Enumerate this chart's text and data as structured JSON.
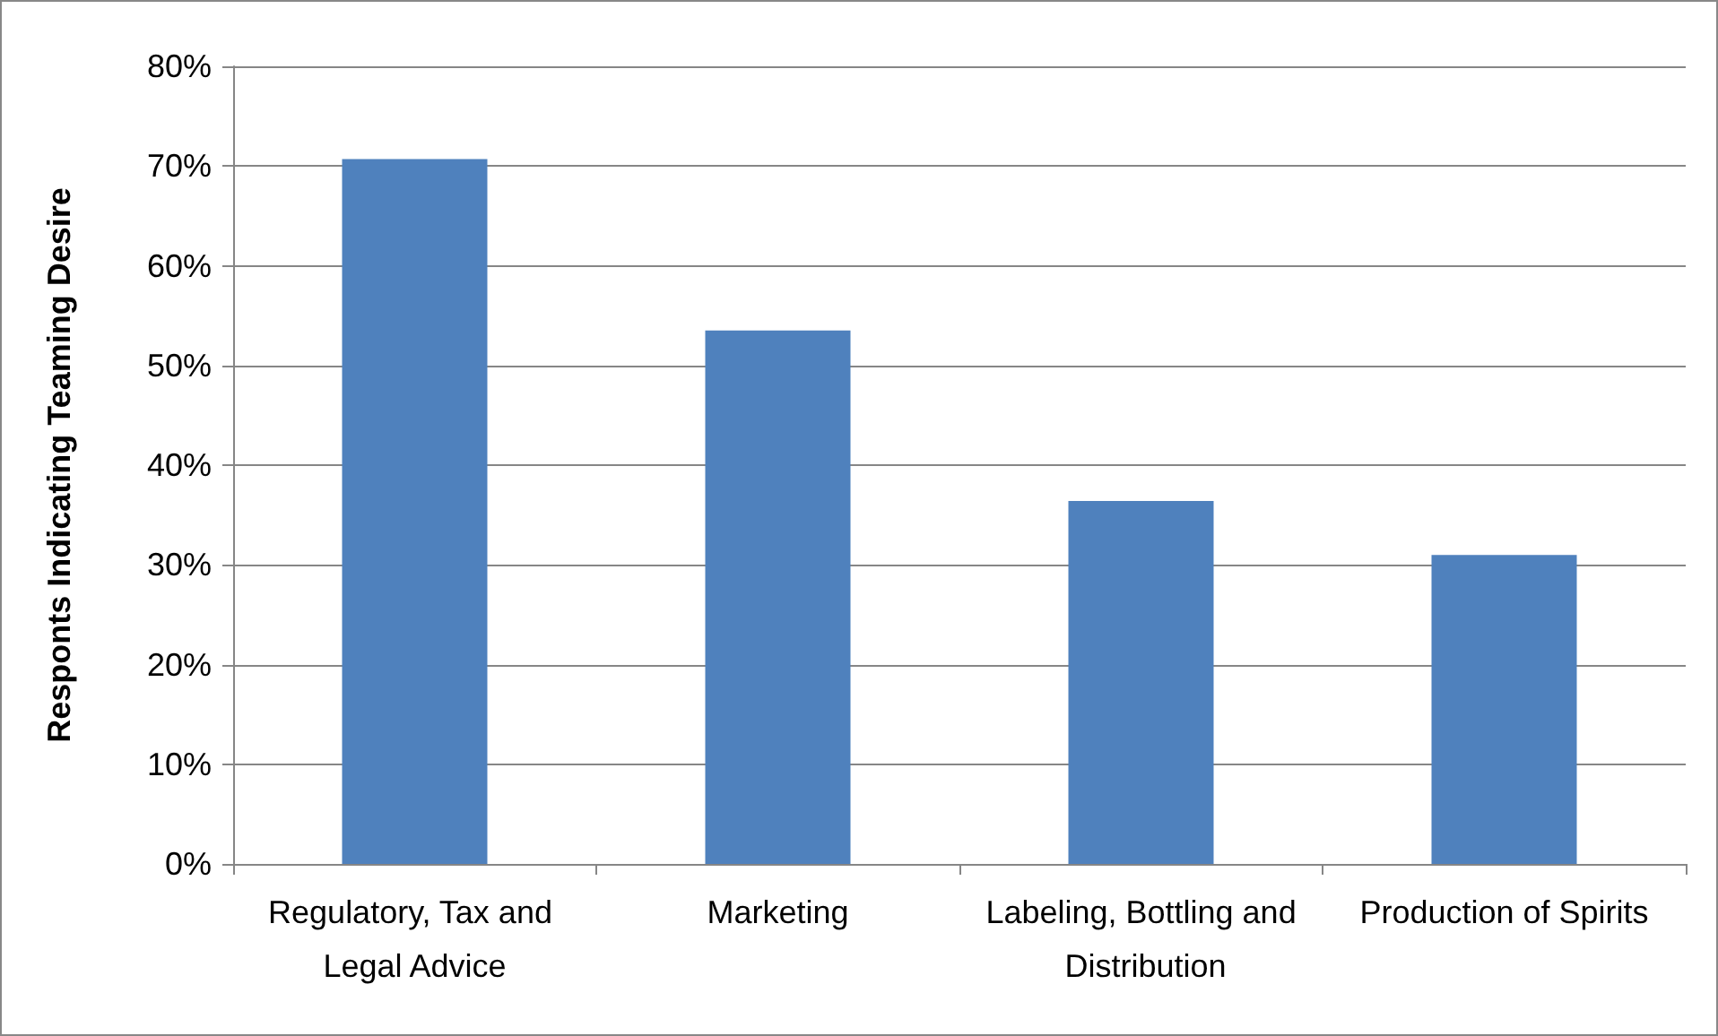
{
  "chart_data": {
    "type": "bar",
    "ylabel": "Responts Indicating Teaming Desire",
    "categories": [
      "Regulatory, Tax and Legal Advice",
      "Marketing",
      "Labeling, Bottling and Distribution",
      "Production of Spirits"
    ],
    "values": [
      70.7,
      53.5,
      36.4,
      31
    ],
    "color": "#4f81bd",
    "ylim": [
      0,
      80
    ],
    "yticks": [
      {
        "value": 0,
        "label": "0%"
      },
      {
        "value": 10,
        "label": "10%"
      },
      {
        "value": 20,
        "label": "20%"
      },
      {
        "value": 30,
        "label": "30%"
      },
      {
        "value": 40,
        "label": "40%"
      },
      {
        "value": 50,
        "label": "50%"
      },
      {
        "value": 60,
        "label": "60%"
      },
      {
        "value": 70,
        "label": "70%"
      },
      {
        "value": 80,
        "label": "80%"
      }
    ],
    "grid": true
  }
}
